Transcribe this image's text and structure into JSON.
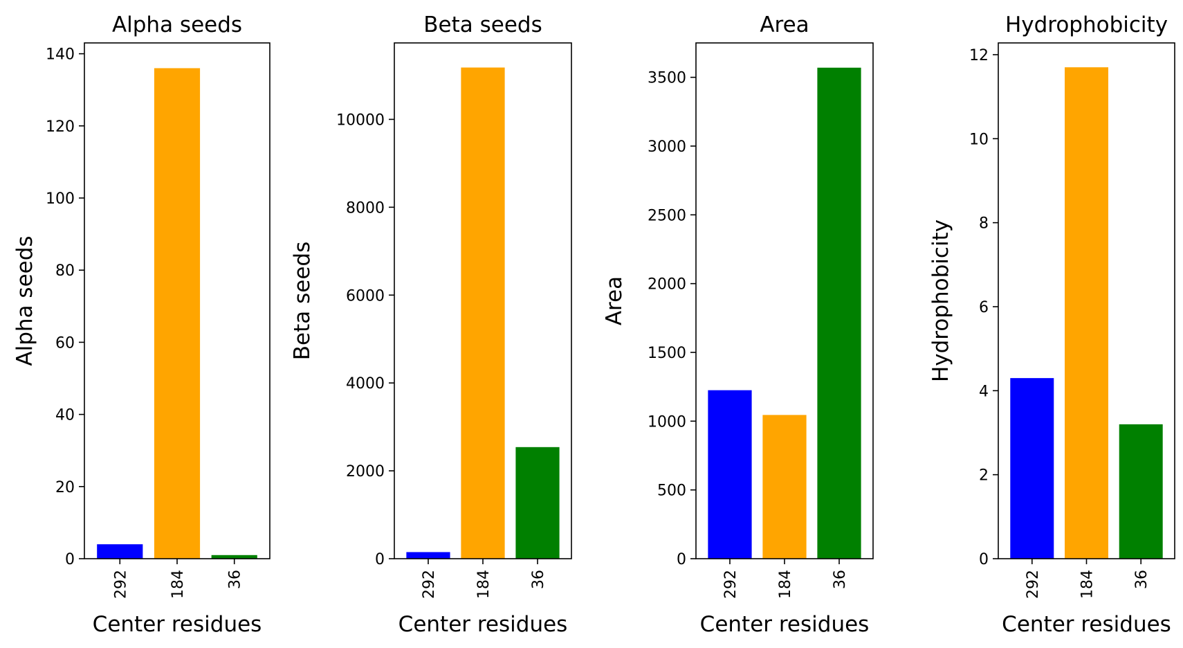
{
  "chart_data": [
    {
      "type": "bar",
      "title": "Alpha seeds",
      "xlabel": "Center residues",
      "ylabel": "Alpha seeds",
      "categories": [
        "292",
        "184",
        "36"
      ],
      "values": [
        4,
        136,
        1
      ],
      "colors": [
        "#0000ff",
        "#ffa500",
        "#008000"
      ],
      "ylim": [
        0,
        143
      ],
      "yticks": [
        0,
        20,
        40,
        60,
        80,
        100,
        120,
        140
      ]
    },
    {
      "type": "bar",
      "title": "Beta seeds",
      "xlabel": "Center residues",
      "ylabel": "Beta seeds",
      "categories": [
        "292",
        "184",
        "36"
      ],
      "values": [
        150,
        11180,
        2540
      ],
      "colors": [
        "#0000ff",
        "#ffa500",
        "#008000"
      ],
      "ylim": [
        0,
        11740
      ],
      "yticks": [
        0,
        2000,
        4000,
        6000,
        8000,
        10000
      ]
    },
    {
      "type": "bar",
      "title": "Area",
      "xlabel": "Center residues",
      "ylabel": "Area",
      "categories": [
        "292",
        "184",
        "36"
      ],
      "values": [
        1225,
        1045,
        3570
      ],
      "colors": [
        "#0000ff",
        "#ffa500",
        "#008000"
      ],
      "ylim": [
        0,
        3750
      ],
      "yticks": [
        0,
        500,
        1000,
        1500,
        2000,
        2500,
        3000,
        3500
      ]
    },
    {
      "type": "bar",
      "title": "Hydrophobicity",
      "xlabel": "Center residues",
      "ylabel": "Hydrophobicity",
      "categories": [
        "292",
        "184",
        "36"
      ],
      "values": [
        4.3,
        11.7,
        3.2
      ],
      "colors": [
        "#0000ff",
        "#ffa500",
        "#008000"
      ],
      "ylim": [
        0,
        12.28
      ],
      "yticks": [
        0,
        2,
        4,
        6,
        8,
        10,
        12
      ]
    }
  ]
}
